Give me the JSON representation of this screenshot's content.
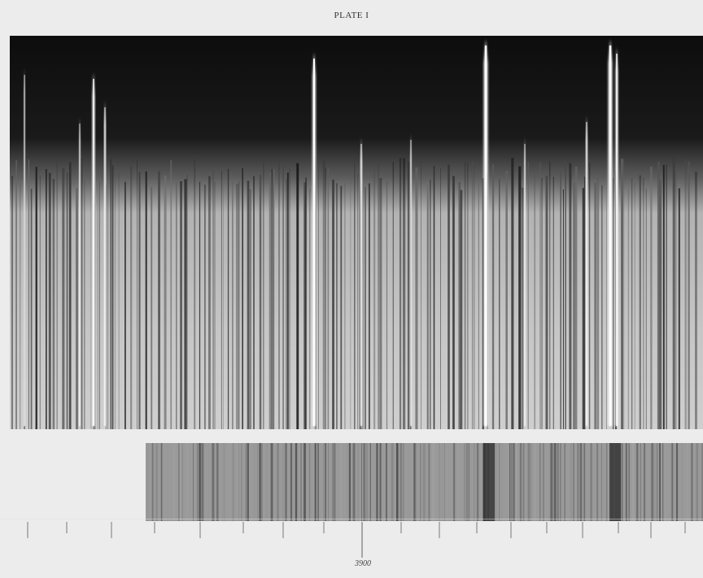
{
  "plate": {
    "title": "PLATE I"
  },
  "scale": {
    "label": "3900"
  }
}
